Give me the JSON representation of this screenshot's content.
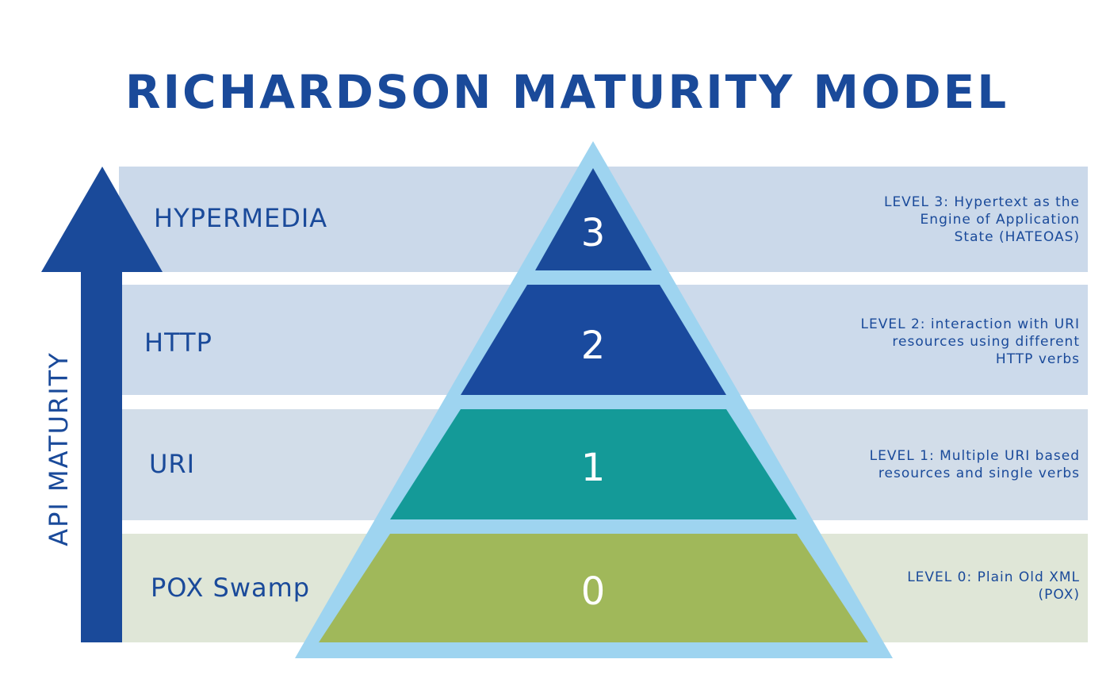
{
  "title": "RICHARDSON MATURITY MODEL",
  "axis_label": "API MATURITY",
  "levels": [
    {
      "number": "3",
      "name": "HYPERMEDIA",
      "description": "LEVEL 3: Hypertext as the\nEngine of Application\nState (HATEOAS)",
      "color": "#1a4a9a"
    },
    {
      "number": "2",
      "name": "HTTP",
      "description": "LEVEL 2: interaction with URI\nresources using different\nHTTP verbs",
      "color": "#1a4a9e"
    },
    {
      "number": "1",
      "name": "URI",
      "description": "LEVEL 1: Multiple URI based\nresources and single verbs",
      "color": "#149a98"
    },
    {
      "number": "0",
      "name": "POX Swamp",
      "description": "LEVEL 0: Plain Old XML\n(POX)",
      "color": "#a0b85a"
    }
  ],
  "colors": {
    "text": "#1a4a9a",
    "pyramid_outline": "#9ed4f0",
    "arrow": "#1a4a9a"
  }
}
